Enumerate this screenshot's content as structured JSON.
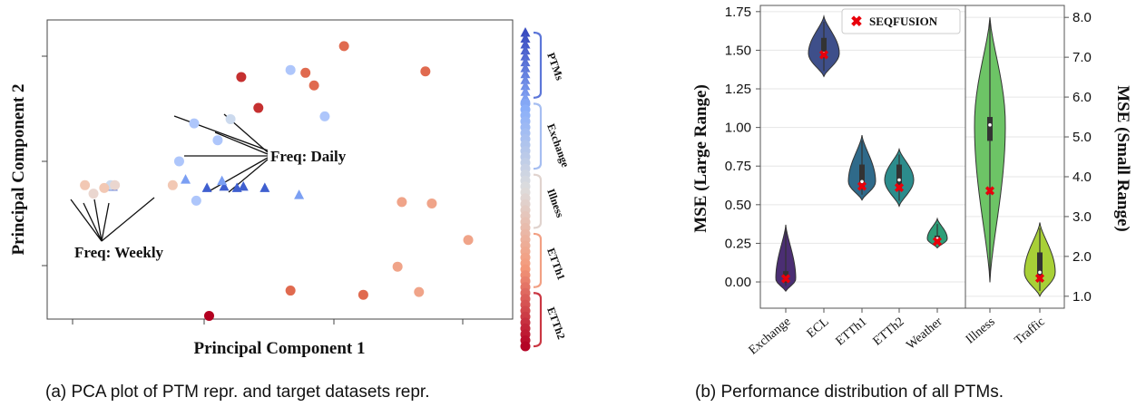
{
  "caption_a": "(a) PCA plot of PTM repr. and target datasets repr.",
  "caption_b": "(b) Performance distribution of all PTMs.",
  "chart_data": [
    {
      "type": "scatter",
      "xlabel": "Principal Component 1",
      "ylabel": "Principal Component 2",
      "grid": false,
      "annotations": [
        "Freq: Daily",
        "Freq: Weekly"
      ],
      "x_range": [
        0,
        100
      ],
      "y_range": [
        0,
        100
      ],
      "series": [
        {
          "marker": "triangle",
          "color": "#3f5fcf",
          "points": [
            [
              11.5,
              46.5
            ],
            [
              33.5,
              46
            ],
            [
              37.5,
              46.5
            ],
            [
              40.5,
              46
            ],
            [
              42,
              46.5
            ],
            [
              47,
              46
            ]
          ]
        },
        {
          "marker": "triangle",
          "color": "#7b9ff3",
          "points": [
            [
              28.5,
              49
            ],
            [
              37,
              48.5
            ],
            [
              55,
              43.5
            ]
          ]
        },
        {
          "marker": "circle",
          "color": "#aec6fb",
          "points": [
            [
              53,
              88
            ],
            [
              61,
              71.5
            ],
            [
              30.5,
              69
            ],
            [
              36,
              63
            ],
            [
              27,
              55.5
            ],
            [
              31,
              41.5
            ]
          ]
        },
        {
          "marker": "circle",
          "color": "#ccdaee",
          "points": [
            [
              39,
              70.5
            ],
            [
              11,
              47
            ]
          ]
        },
        {
          "marker": "circle",
          "color": "#ead6cf",
          "points": [
            [
              7,
              44
            ],
            [
              12,
              47
            ]
          ]
        },
        {
          "marker": "circle",
          "color": "#f2c8b4",
          "points": [
            [
              5,
              47
            ],
            [
              9.5,
              46
            ],
            [
              25.5,
              47
            ]
          ]
        },
        {
          "marker": "circle",
          "color": "#f0a489",
          "points": [
            [
              79,
              41
            ],
            [
              86,
              40.5
            ],
            [
              94.5,
              27.5
            ],
            [
              78,
              18
            ],
            [
              83,
              9
            ]
          ]
        },
        {
          "marker": "circle",
          "color": "#e06a4f",
          "points": [
            [
              65.5,
              96.5
            ],
            [
              56.5,
              87
            ],
            [
              58.5,
              82.5
            ],
            [
              84.5,
              87.5
            ],
            [
              53,
              9.5
            ],
            [
              70,
              8
            ]
          ]
        },
        {
          "marker": "circle",
          "color": "#c53030",
          "points": [
            [
              41.5,
              85.5
            ],
            [
              45.5,
              74.5
            ]
          ]
        },
        {
          "marker": "circle",
          "color": "#b30020",
          "points": [
            [
              34,
              0.5
            ]
          ]
        }
      ],
      "colorbar": {
        "labels": [
          "PTMs",
          "Exchange",
          "Illness",
          "ETTh1",
          "ETTh2"
        ],
        "counts": [
          12,
          12,
          10,
          10,
          10
        ]
      }
    },
    {
      "type": "violin",
      "ylabel": "MSE (Large Range)",
      "ylabel_right": "MSE (Small Range)",
      "ylim": [
        -0.17,
        1.79
      ],
      "ylim_right": [
        0.7,
        8.3
      ],
      "yticks": [
        "0.00",
        "0.25",
        "0.50",
        "0.75",
        "1.00",
        "1.25",
        "1.50",
        "1.75"
      ],
      "yticks_right": [
        "1.0",
        "2.0",
        "3.0",
        "4.0",
        "5.0",
        "6.0",
        "7.0",
        "8.0"
      ],
      "categories": [
        "Exchange",
        "ECL",
        "ETTh1",
        "ETTh2",
        "Weather",
        "Illness",
        "Traffic"
      ],
      "legend": "SEQFUSION",
      "legend_position": "top-right",
      "grid": true,
      "violins": [
        {
          "name": "Exchange",
          "axis": "left",
          "color": "#4b2e73",
          "range": [
            -0.06,
            0.37
          ],
          "box": [
            -0.005,
            0.07
          ],
          "median": 0.02,
          "seqfusion": 0.02
        },
        {
          "name": "ECL",
          "axis": "left",
          "color": "#3e4f8a",
          "range": [
            1.33,
            1.72
          ],
          "box": [
            1.45,
            1.58
          ],
          "median": 1.48,
          "seqfusion": 1.47
        },
        {
          "name": "ETTh1",
          "axis": "left",
          "color": "#2f6a8a",
          "range": [
            0.53,
            0.95
          ],
          "box": [
            0.61,
            0.76
          ],
          "median": 0.65,
          "seqfusion": 0.62
        },
        {
          "name": "ETTh2",
          "axis": "left",
          "color": "#2c8c8c",
          "range": [
            0.49,
            0.86
          ],
          "box": [
            0.6,
            0.76
          ],
          "median": 0.66,
          "seqfusion": 0.61
        },
        {
          "name": "Weather",
          "axis": "left",
          "color": "#2e9e78",
          "range": [
            0.22,
            0.41
          ],
          "box": [
            0.255,
            0.3
          ],
          "median": 0.28,
          "seqfusion": 0.26
        },
        {
          "name": "Illness",
          "axis": "right",
          "color": "#6dc466",
          "range": [
            1.35,
            8.0
          ],
          "box": [
            4.9,
            5.5
          ],
          "median": 5.3,
          "seqfusion": 3.65
        },
        {
          "name": "Traffic",
          "axis": "right",
          "color": "#a8d037",
          "range": [
            1.0,
            2.85
          ],
          "box": [
            1.45,
            2.1
          ],
          "median": 1.6,
          "seqfusion": 1.45
        }
      ]
    }
  ]
}
